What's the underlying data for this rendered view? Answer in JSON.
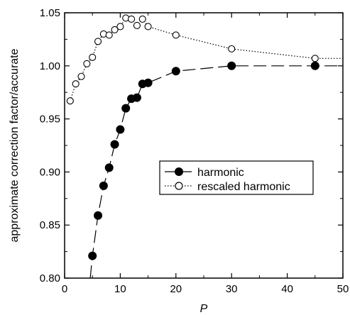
{
  "chart_data": {
    "type": "scatter",
    "xlabel": "P",
    "ylabel": "approximate correction factor/accurate",
    "xlim": [
      0,
      50
    ],
    "ylim": [
      0.8,
      1.05
    ],
    "xticks": [
      0,
      10,
      20,
      30,
      40,
      50
    ],
    "yticks": [
      0.8,
      0.85,
      0.9,
      0.95,
      1.0,
      1.05
    ],
    "xtick_labels": [
      "0",
      "10",
      "20",
      "30",
      "40",
      "50"
    ],
    "ytick_labels": [
      "0.80",
      "0.85",
      "0.90",
      "0.95",
      "1.00",
      "1.05"
    ],
    "grid": false,
    "legend_position": "center-right",
    "series": [
      {
        "name": "harmonic",
        "marker": "filled-circle",
        "line_style": "long-dash",
        "color": "#000000",
        "x": [
          5,
          6,
          7,
          8,
          9,
          10,
          11,
          12,
          13,
          14,
          15,
          20,
          30,
          45
        ],
        "y": [
          0.821,
          0.859,
          0.887,
          0.904,
          0.926,
          0.94,
          0.96,
          0.969,
          0.97,
          0.983,
          0.984,
          0.995,
          1.0,
          1.0
        ],
        "curve_x": [
          4.6,
          5,
          6,
          7,
          8,
          9,
          10,
          11,
          12,
          13,
          14,
          15,
          20,
          30,
          45,
          50
        ],
        "curve_y": [
          0.8,
          0.821,
          0.859,
          0.887,
          0.904,
          0.926,
          0.94,
          0.96,
          0.969,
          0.97,
          0.983,
          0.984,
          0.995,
          1.0,
          1.0,
          1.0
        ]
      },
      {
        "name": "rescaled harmonic",
        "marker": "open-circle",
        "line_style": "dotted",
        "color": "#000000",
        "x": [
          1,
          2,
          3,
          4,
          5,
          6,
          7,
          8,
          9,
          10,
          11,
          12,
          13,
          14,
          15,
          20,
          30,
          45
        ],
        "y": [
          0.967,
          0.983,
          0.99,
          1.002,
          1.008,
          1.023,
          1.03,
          1.029,
          1.034,
          1.037,
          1.045,
          1.044,
          1.038,
          1.044,
          1.037,
          1.029,
          1.016,
          1.007
        ],
        "curve_x": [
          1,
          2,
          3,
          4,
          5,
          6,
          7,
          8,
          9,
          10,
          11,
          12,
          13,
          14,
          15,
          20,
          30,
          45,
          50
        ],
        "curve_y": [
          0.967,
          0.983,
          0.99,
          1.002,
          1.008,
          1.023,
          1.03,
          1.029,
          1.034,
          1.037,
          1.045,
          1.044,
          1.038,
          1.044,
          1.037,
          1.029,
          1.016,
          1.007,
          1.007
        ]
      }
    ]
  }
}
